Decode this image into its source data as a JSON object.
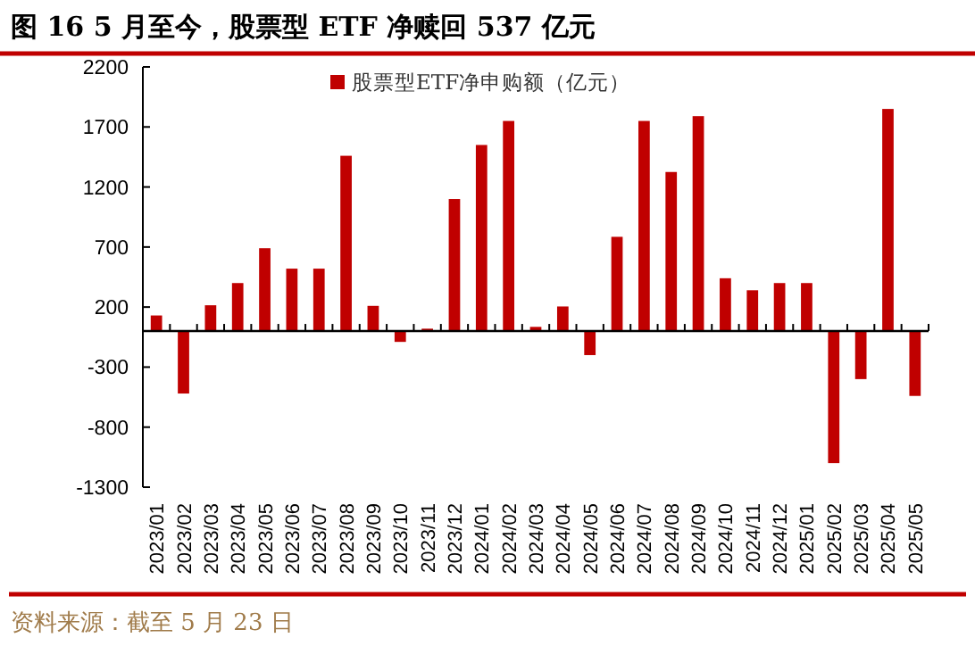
{
  "chart_data": {
    "type": "bar",
    "title": "图 16 5 月至今，股票型 ETF 净赎回 537 亿元",
    "annotations": [
      "资料来源：截至 5 月 23 日"
    ],
    "categories": [
      "2023/01",
      "2023/02",
      "2023/03",
      "2023/04",
      "2023/05",
      "2023/06",
      "2023/07",
      "2023/08",
      "2023/09",
      "2023/10",
      "2023/11",
      "2023/12",
      "2024/01",
      "2024/02",
      "2024/03",
      "2024/04",
      "2024/05",
      "2024/06",
      "2024/07",
      "2024/08",
      "2024/09",
      "2024/10",
      "2024/11",
      "2024/12",
      "2025/01",
      "2025/02",
      "2025/03",
      "2025/04",
      "2025/05"
    ],
    "series": [
      {
        "name": "股票型ETF净申购额（亿元）",
        "color": "#c00000",
        "values": [
          130,
          -520,
          215,
          400,
          690,
          520,
          520,
          1460,
          210,
          -90,
          20,
          1100,
          1550,
          1750,
          35,
          205,
          -200,
          785,
          1750,
          1325,
          1790,
          440,
          340,
          400,
          400,
          -1100,
          -400,
          1850,
          -540
        ]
      }
    ],
    "ylim": [
      -1300,
      2200
    ],
    "yticks": [
      -1300,
      -800,
      -300,
      200,
      700,
      1200,
      1700,
      2200
    ],
    "legend": "top"
  }
}
